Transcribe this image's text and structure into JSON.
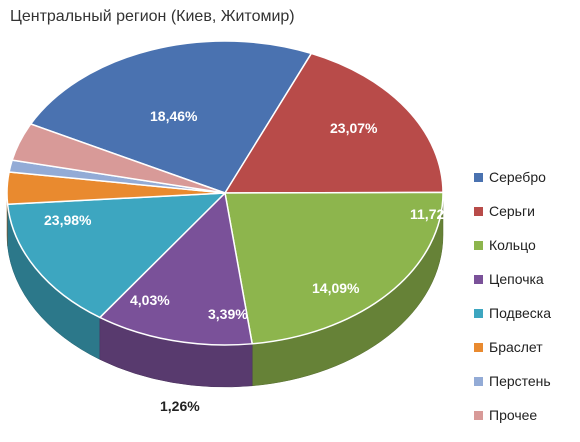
{
  "chart_data": {
    "type": "pie",
    "title": "Центральный регион (Киев, Житомир)",
    "categories": [
      "Серебро",
      "Серьги",
      "Кольцо",
      "Цепочка",
      "Подвеска",
      "Браслет",
      "Перстень",
      "Прочее"
    ],
    "values": [
      23.98,
      18.46,
      23.07,
      11.72,
      14.09,
      3.39,
      1.26,
      4.03
    ],
    "labels": [
      "23,98%",
      "18,46%",
      "23,07%",
      "11,72%",
      "14,09%",
      "3,39%",
      "1,26%",
      "4,03%"
    ],
    "colors": [
      "#4a72b0",
      "#b84b49",
      "#8db54d",
      "#7a5199",
      "#3da6c0",
      "#e98a2f",
      "#93abd6",
      "#d89a98"
    ],
    "legend_position": "right",
    "style": "3d-pie"
  }
}
